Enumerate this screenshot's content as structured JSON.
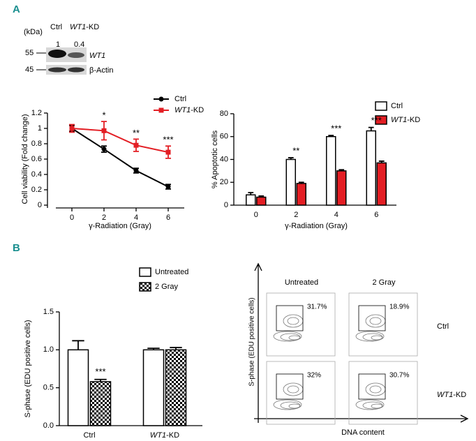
{
  "panel_labels": [
    "A",
    "B"
  ],
  "blot": {
    "unit": "(kDa)",
    "lanes": [
      "Ctrl",
      "WT1-KD"
    ],
    "ratios": [
      "1",
      "0.4"
    ],
    "markers": [
      "55",
      "45"
    ],
    "bands": [
      "WT1",
      "β-Actin"
    ]
  },
  "chart_data": [
    {
      "type": "line",
      "x": [
        0,
        2,
        4,
        6
      ],
      "series": [
        {
          "name": "Ctrl",
          "color": "#000000",
          "values": [
            1,
            0.73,
            0.45,
            0.24
          ],
          "errors": [
            0.04,
            0.04,
            0.03,
            0.03
          ]
        },
        {
          "name": "WT1-KD",
          "color": "#e31e24",
          "values": [
            1,
            0.97,
            0.78,
            0.69
          ],
          "errors": [
            0.05,
            0.12,
            0.08,
            0.08
          ]
        }
      ],
      "xlim": [
        -1,
        7
      ],
      "xticks": [
        0,
        2,
        4,
        6
      ],
      "ylim": [
        0,
        1.2
      ],
      "yticks": [
        0,
        0.2,
        0.4,
        0.6,
        0.8,
        1,
        1.2
      ],
      "x_label": "γ-Radiation (Gray)",
      "y_label": "Cell viability (Fold change)",
      "annotations": [
        {
          "x": 2,
          "text": "*"
        },
        {
          "x": 4,
          "text": "**"
        },
        {
          "x": 6,
          "text": "***"
        }
      ]
    },
    {
      "type": "bar",
      "categories": [
        "0",
        "2",
        "4",
        "6"
      ],
      "series": [
        {
          "name": "Ctrl",
          "color": "#ffffff",
          "values": [
            9,
            40,
            60,
            65
          ],
          "errors": [
            2,
            1.5,
            1,
            3
          ]
        },
        {
          "name": "WT1-KD",
          "color": "#e31e24",
          "values": [
            7,
            19,
            30,
            37
          ],
          "errors": [
            1,
            1,
            1,
            1.5
          ]
        }
      ],
      "ylim": [
        0,
        80
      ],
      "yticks": [
        0,
        20,
        40,
        60,
        80
      ],
      "x_label": "γ-Radiation (Gray)",
      "y_label": "% Apoptotic cells",
      "annotations": [
        {
          "category": "2",
          "text": "**"
        },
        {
          "category": "4",
          "text": "***"
        },
        {
          "category": "6",
          "text": "***"
        }
      ]
    },
    {
      "type": "bar",
      "categories": [
        "Ctrl",
        "WT1-KD"
      ],
      "series": [
        {
          "name": "Untreated",
          "color": "#ffffff",
          "values": [
            1.0,
            1.0
          ],
          "errors": [
            0.12,
            0.02
          ]
        },
        {
          "name": "2 Gray",
          "color": "#000000",
          "pattern": "checker",
          "values": [
            0.58,
            1.0
          ],
          "errors": [
            0.03,
            0.03
          ]
        }
      ],
      "ylim": [
        0,
        1.5
      ],
      "yticks": [
        {
          "value": 0,
          "label": "0.0"
        },
        0.5,
        {
          "value": 1,
          "label": "1.0"
        },
        1.5
      ],
      "y_label": "S-phase (EDU positive cells)",
      "annotations": [
        {
          "category": "Ctrl",
          "text": "***"
        }
      ]
    }
  ],
  "flow": {
    "columns": [
      "Untreated",
      "2 Gray"
    ],
    "rows": [
      "Ctrl",
      "WT1-KD"
    ],
    "gates": [
      [
        "31.7%",
        "18.9%"
      ],
      [
        "32%",
        "30.7%"
      ]
    ],
    "x_label": "DNA content",
    "y_label": "S-phase (EDU positive cells)"
  }
}
